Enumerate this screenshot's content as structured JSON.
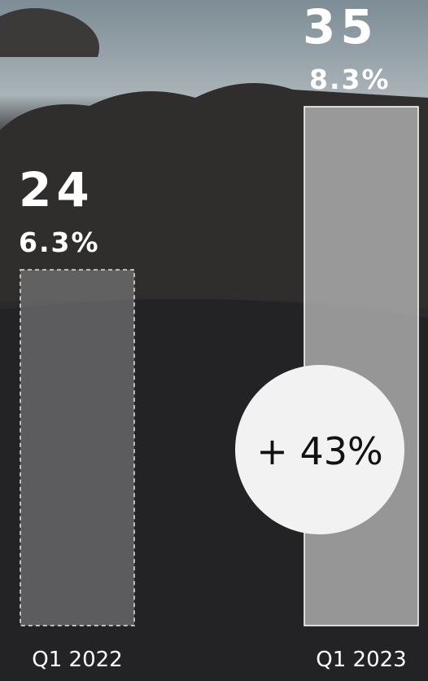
{
  "chart_data": {
    "type": "bar",
    "categories": [
      "Q1 2022",
      "Q1 2023"
    ],
    "values": [
      24,
      35
    ],
    "share_labels": [
      "6.3%",
      "8.3%"
    ],
    "annotation": "+ 43%"
  }
}
